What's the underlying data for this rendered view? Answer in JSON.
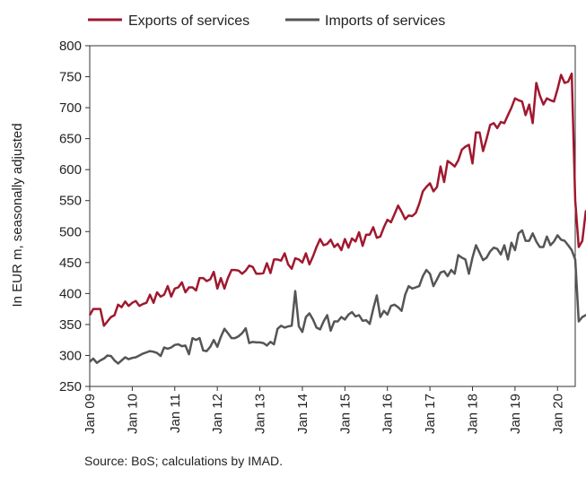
{
  "chart_data": {
    "type": "line",
    "ylabel": "In EUR m, seasonally adjusted",
    "ylim": [
      250,
      800
    ],
    "yticks": [
      250,
      300,
      350,
      400,
      450,
      500,
      550,
      600,
      650,
      700,
      750,
      800
    ],
    "x_start": "2009-01",
    "x_end": "2020-06",
    "xtick_labels": [
      "Jan 09",
      "Jan 10",
      "Jan 11",
      "Jan 12",
      "Jan 13",
      "Jan 14",
      "Jan 15",
      "Jan 16",
      "Jan 17",
      "Jan 18",
      "Jan 19",
      "Jan 20"
    ],
    "legend_position": "top",
    "grid": false,
    "series": [
      {
        "name": "Exports of services",
        "color": "#a0182e",
        "values": [
          365,
          375,
          375,
          375,
          348,
          355,
          362,
          365,
          382,
          378,
          387,
          380,
          385,
          388,
          380,
          383,
          385,
          398,
          385,
          402,
          395,
          398,
          412,
          395,
          408,
          410,
          418,
          402,
          410,
          410,
          405,
          425,
          425,
          420,
          423,
          435,
          408,
          425,
          408,
          425,
          438,
          438,
          437,
          432,
          437,
          445,
          443,
          432,
          432,
          433,
          449,
          433,
          455,
          455,
          453,
          465,
          447,
          440,
          457,
          455,
          450,
          465,
          447,
          460,
          475,
          488,
          478,
          480,
          487,
          475,
          480,
          470,
          488,
          474,
          489,
          484,
          499,
          477,
          495,
          495,
          507,
          490,
          492,
          507,
          519,
          515,
          528,
          542,
          532,
          520,
          526,
          525,
          530,
          545,
          565,
          572,
          578,
          565,
          572,
          605,
          580,
          614,
          610,
          605,
          615,
          632,
          637,
          640,
          610,
          660,
          660,
          630,
          650,
          672,
          675,
          667,
          677,
          675,
          688,
          700,
          715,
          712,
          710,
          688,
          705,
          675,
          740,
          720,
          705,
          715,
          712,
          710,
          730,
          753,
          740,
          742,
          755,
          550,
          475,
          485,
          533,
          525
        ]
      },
      {
        "name": "Imports of services",
        "color": "#555555",
        "values": [
          290,
          295,
          288,
          292,
          295,
          300,
          299,
          292,
          287,
          292,
          297,
          294,
          296,
          297,
          300,
          303,
          305,
          307,
          306,
          304,
          299,
          313,
          311,
          313,
          317,
          318,
          315,
          316,
          302,
          328,
          325,
          328,
          308,
          307,
          314,
          325,
          314,
          330,
          343,
          336,
          328,
          328,
          331,
          336,
          344,
          320,
          322,
          321,
          321,
          320,
          316,
          322,
          318,
          343,
          348,
          345,
          347,
          348,
          404,
          347,
          338,
          362,
          368,
          358,
          345,
          342,
          355,
          365,
          340,
          355,
          355,
          362,
          358,
          366,
          370,
          363,
          365,
          356,
          357,
          351,
          375,
          397,
          362,
          372,
          366,
          380,
          382,
          378,
          372,
          398,
          412,
          408,
          410,
          412,
          428,
          438,
          432,
          412,
          423,
          434,
          436,
          428,
          438,
          432,
          462,
          458,
          455,
          432,
          458,
          478,
          466,
          454,
          458,
          468,
          474,
          472,
          463,
          478,
          455,
          482,
          470,
          497,
          502,
          485,
          485,
          497,
          484,
          475,
          475,
          492,
          478,
          484,
          494,
          487,
          485,
          478,
          470,
          455,
          355,
          362,
          365,
          367
        ]
      }
    ]
  },
  "source_note": "Source: BoS; calculations by IMAD."
}
